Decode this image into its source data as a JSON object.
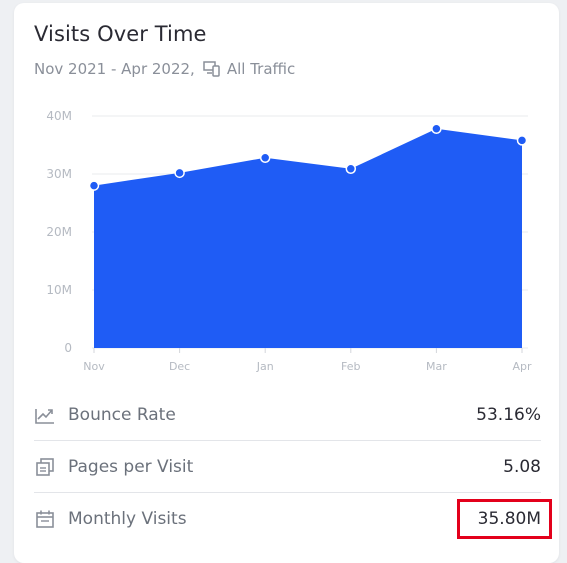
{
  "header": {
    "title": "Visits Over Time",
    "date_range": "Nov 2021 - Apr 2022,",
    "traffic_label": "All Traffic"
  },
  "colors": {
    "area_fill": "#1f5cf5",
    "grid": "#e9ebee",
    "tick_text": "#b5bac2",
    "highlight": "#e3001b"
  },
  "chart_data": {
    "type": "area",
    "categories": [
      "Nov",
      "Dec",
      "Jan",
      "Feb",
      "Mar",
      "Apr"
    ],
    "series": [
      {
        "values": [
          28000000,
          30200000,
          32800000,
          30900000,
          37800000,
          35800000
        ]
      }
    ],
    "y_ticks": [
      "0",
      "10M",
      "20M",
      "30M",
      "40M"
    ],
    "ylim": [
      0,
      40000000
    ],
    "grid": true
  },
  "metrics": [
    {
      "label": "Bounce Rate",
      "value": "53.16%",
      "icon": "trend-chart-icon"
    },
    {
      "label": "Pages per Visit",
      "value": "5.08",
      "icon": "pages-copy-icon"
    },
    {
      "label": "Monthly Visits",
      "value": "35.80M",
      "icon": "calendar-icon"
    }
  ]
}
